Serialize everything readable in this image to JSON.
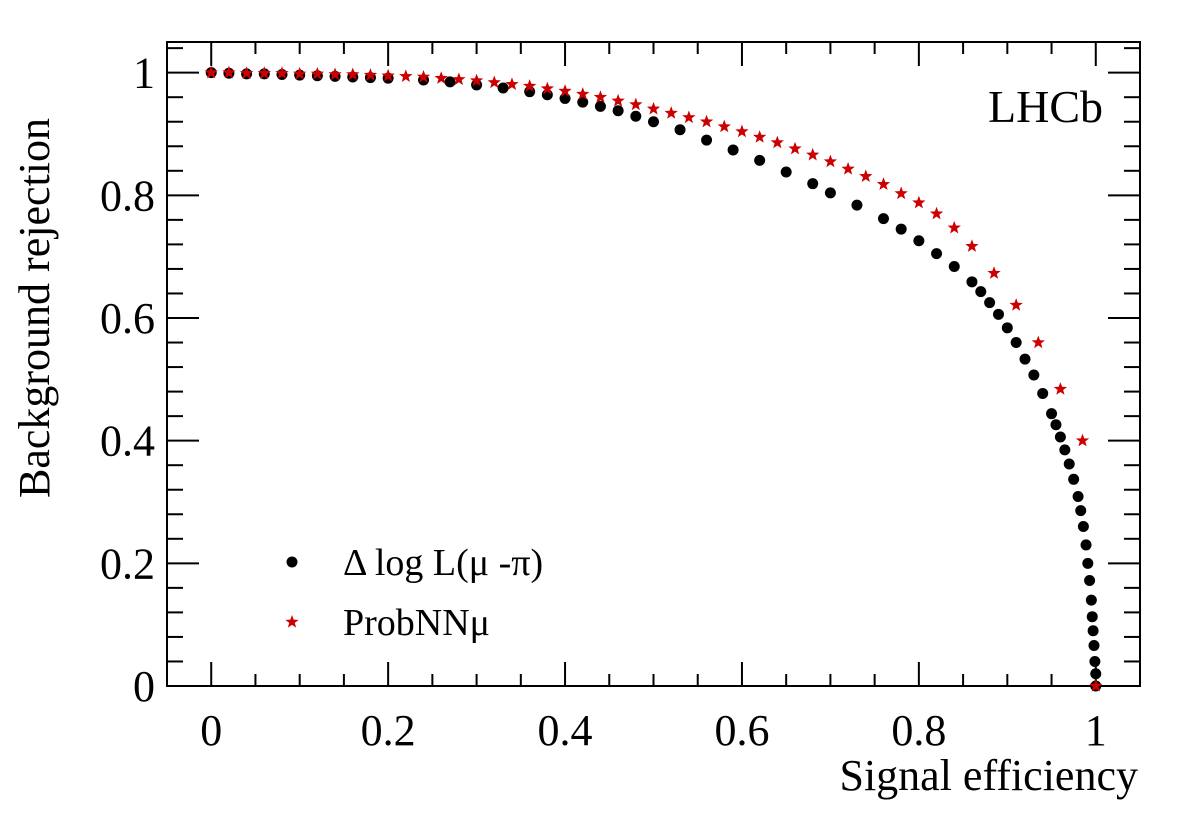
{
  "chart_data": {
    "type": "scatter",
    "xlabel": "Signal efficiency",
    "ylabel": "Background rejection",
    "xlim": [
      -0.05,
      1.05
    ],
    "ylim": [
      0,
      1.05
    ],
    "x_ticks": [
      "0",
      "0.2",
      "0.4",
      "0.6",
      "0.8",
      "1"
    ],
    "y_ticks": [
      "0",
      "0.2",
      "0.4",
      "0.6",
      "0.8",
      "1"
    ],
    "grid": false,
    "legend_position": "bottom-left",
    "annotation": "LHCb",
    "series": [
      {
        "name": "Δ log L(μ -π)",
        "marker": "circle",
        "color": "#000000",
        "points": [
          [
            0.0,
            1.0
          ],
          [
            0.02,
            0.999
          ],
          [
            0.04,
            0.998
          ],
          [
            0.06,
            0.998
          ],
          [
            0.08,
            0.997
          ],
          [
            0.1,
            0.996
          ],
          [
            0.12,
            0.995
          ],
          [
            0.14,
            0.994
          ],
          [
            0.16,
            0.993
          ],
          [
            0.18,
            0.992
          ],
          [
            0.2,
            0.991
          ],
          [
            0.24,
            0.988
          ],
          [
            0.27,
            0.985
          ],
          [
            0.3,
            0.98
          ],
          [
            0.33,
            0.975
          ],
          [
            0.36,
            0.969
          ],
          [
            0.38,
            0.964
          ],
          [
            0.4,
            0.958
          ],
          [
            0.42,
            0.952
          ],
          [
            0.44,
            0.945
          ],
          [
            0.46,
            0.938
          ],
          [
            0.48,
            0.929
          ],
          [
            0.5,
            0.92
          ],
          [
            0.53,
            0.907
          ],
          [
            0.56,
            0.89
          ],
          [
            0.59,
            0.874
          ],
          [
            0.62,
            0.857
          ],
          [
            0.65,
            0.838
          ],
          [
            0.68,
            0.819
          ],
          [
            0.7,
            0.804
          ],
          [
            0.73,
            0.784
          ],
          [
            0.76,
            0.762
          ],
          [
            0.78,
            0.745
          ],
          [
            0.8,
            0.726
          ],
          [
            0.82,
            0.705
          ],
          [
            0.84,
            0.684
          ],
          [
            0.86,
            0.659
          ],
          [
            0.87,
            0.643
          ],
          [
            0.88,
            0.625
          ],
          [
            0.89,
            0.606
          ],
          [
            0.9,
            0.584
          ],
          [
            0.91,
            0.56
          ],
          [
            0.92,
            0.533
          ],
          [
            0.93,
            0.507
          ],
          [
            0.94,
            0.477
          ],
          [
            0.95,
            0.444
          ],
          [
            0.955,
            0.426
          ],
          [
            0.96,
            0.406
          ],
          [
            0.965,
            0.385
          ],
          [
            0.97,
            0.362
          ],
          [
            0.975,
            0.337
          ],
          [
            0.98,
            0.309
          ],
          [
            0.983,
            0.286
          ],
          [
            0.986,
            0.26
          ],
          [
            0.989,
            0.23
          ],
          [
            0.991,
            0.2
          ],
          [
            0.993,
            0.172
          ],
          [
            0.995,
            0.14
          ],
          [
            0.996,
            0.113
          ],
          [
            0.997,
            0.09
          ],
          [
            0.998,
            0.066
          ],
          [
            0.999,
            0.04
          ],
          [
            1.0,
            0.02
          ],
          [
            1.0,
            0.0
          ]
        ]
      },
      {
        "name": "ProbNNμ",
        "marker": "star",
        "color": "#cc0000",
        "points": [
          [
            0.0,
            1.0
          ],
          [
            0.02,
            1.0
          ],
          [
            0.04,
            0.999
          ],
          [
            0.06,
            0.999
          ],
          [
            0.08,
            0.999
          ],
          [
            0.1,
            0.998
          ],
          [
            0.12,
            0.998
          ],
          [
            0.14,
            0.997
          ],
          [
            0.16,
            0.997
          ],
          [
            0.18,
            0.996
          ],
          [
            0.2,
            0.995
          ],
          [
            0.22,
            0.994
          ],
          [
            0.24,
            0.993
          ],
          [
            0.26,
            0.991
          ],
          [
            0.28,
            0.989
          ],
          [
            0.3,
            0.987
          ],
          [
            0.32,
            0.984
          ],
          [
            0.34,
            0.981
          ],
          [
            0.36,
            0.978
          ],
          [
            0.38,
            0.974
          ],
          [
            0.4,
            0.97
          ],
          [
            0.42,
            0.965
          ],
          [
            0.44,
            0.96
          ],
          [
            0.46,
            0.954
          ],
          [
            0.48,
            0.948
          ],
          [
            0.5,
            0.941
          ],
          [
            0.52,
            0.934
          ],
          [
            0.54,
            0.927
          ],
          [
            0.56,
            0.92
          ],
          [
            0.58,
            0.912
          ],
          [
            0.6,
            0.904
          ],
          [
            0.62,
            0.895
          ],
          [
            0.64,
            0.886
          ],
          [
            0.66,
            0.876
          ],
          [
            0.68,
            0.866
          ],
          [
            0.7,
            0.855
          ],
          [
            0.72,
            0.843
          ],
          [
            0.74,
            0.831
          ],
          [
            0.76,
            0.818
          ],
          [
            0.78,
            0.803
          ],
          [
            0.8,
            0.788
          ],
          [
            0.82,
            0.77
          ],
          [
            0.84,
            0.747
          ],
          [
            0.86,
            0.717
          ],
          [
            0.885,
            0.673
          ],
          [
            0.91,
            0.621
          ],
          [
            0.935,
            0.56
          ],
          [
            0.96,
            0.484
          ],
          [
            0.985,
            0.4
          ],
          [
            1.0,
            0.0
          ]
        ]
      }
    ]
  }
}
